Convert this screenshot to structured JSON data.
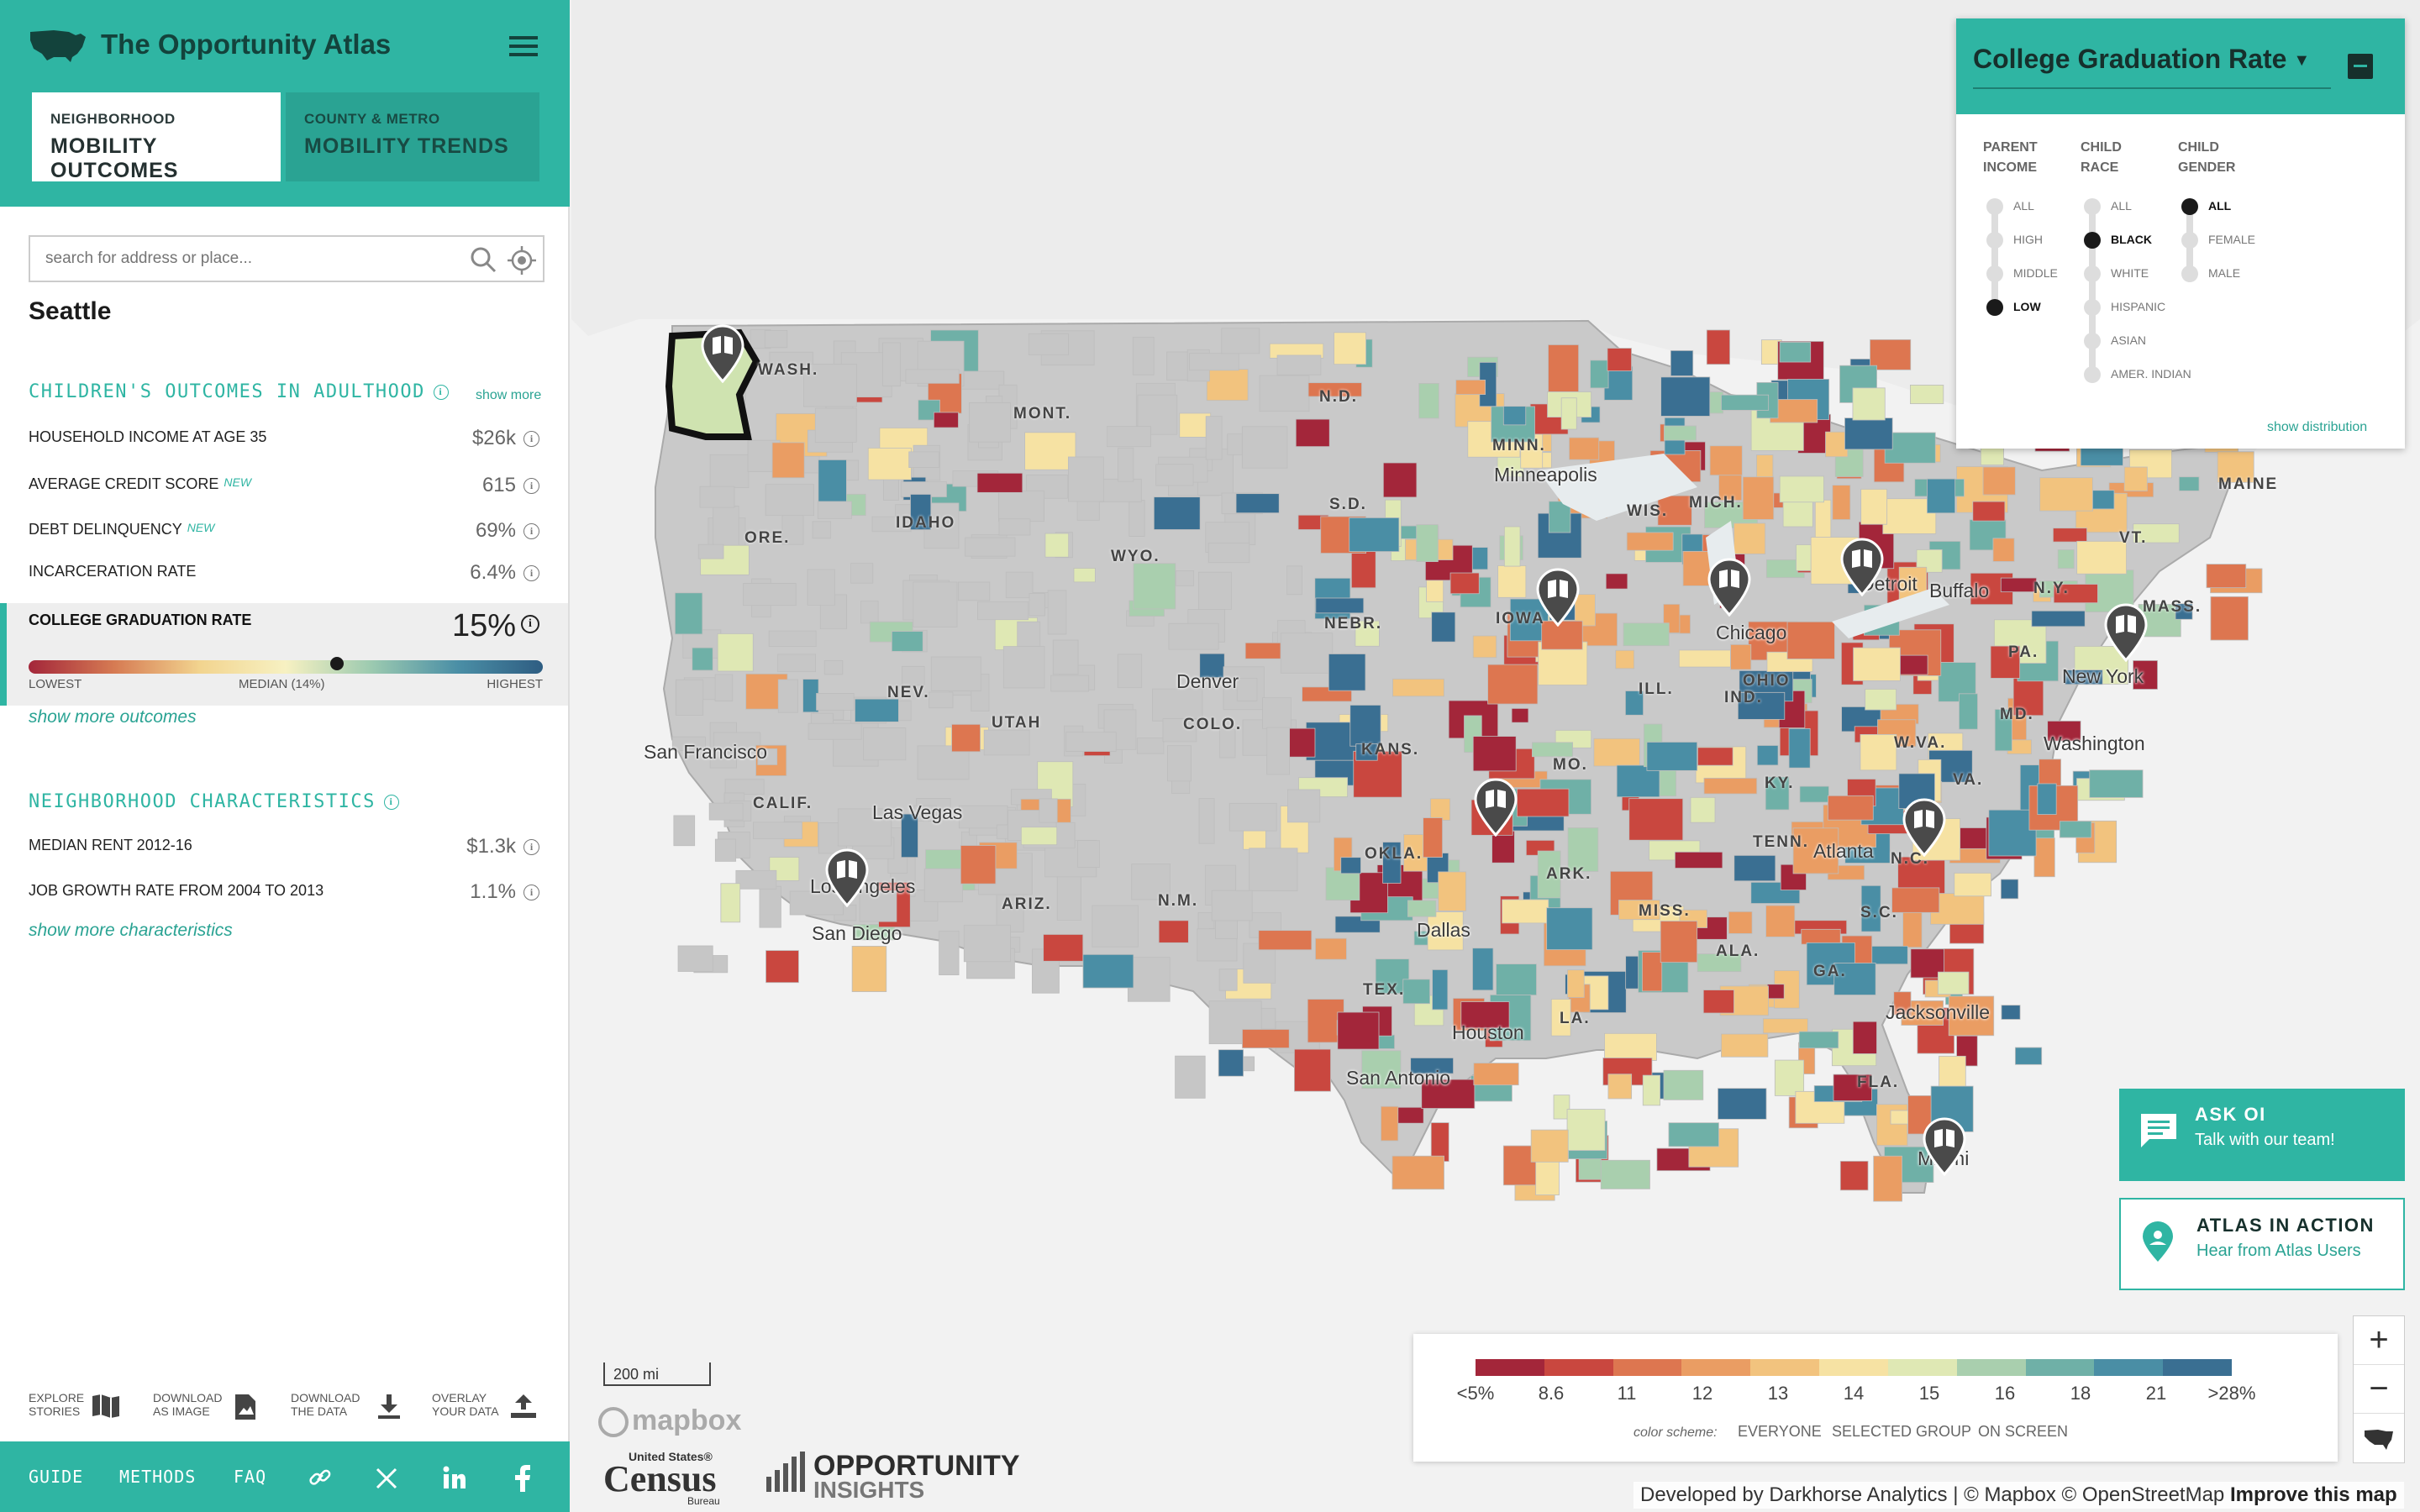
{
  "app": {
    "title": "The Opportunity Atlas"
  },
  "tabs": [
    {
      "small": "NEIGHBORHOOD",
      "big": "MOBILITY OUTCOMES"
    },
    {
      "small": "COUNTY & METRO",
      "big": "MOBILITY TRENDS"
    }
  ],
  "search": {
    "placeholder": "search for address or place..."
  },
  "place": "Seattle",
  "outcomes": {
    "title": "CHILDREN'S OUTCOMES IN ADULTHOOD",
    "show_more": "show more",
    "rows": [
      {
        "label": "HOUSEHOLD INCOME AT AGE 35",
        "value": "$26k",
        "new": ""
      },
      {
        "label": "AVERAGE CREDIT SCORE",
        "value": "615",
        "new": "NEW"
      },
      {
        "label": "DEBT DELINQUENCY",
        "value": "69%",
        "new": "NEW"
      },
      {
        "label": "INCARCERATION RATE",
        "value": "6.4%",
        "new": ""
      }
    ],
    "highlight": {
      "label": "COLLEGE GRADUATION RATE",
      "value": "15%",
      "low": "LOWEST",
      "median": "MEDIAN (14%)",
      "high": "HIGHEST",
      "position": 0.6
    },
    "show_more_outcomes": "show more outcomes"
  },
  "characteristics": {
    "title": "NEIGHBORHOOD CHARACTERISTICS",
    "rows": [
      {
        "label": "MEDIAN RENT 2012-16",
        "value": "$1.3k"
      },
      {
        "label": "JOB GROWTH RATE FROM 2004 TO 2013",
        "value": "1.1%"
      }
    ],
    "show_more": "show more characteristics"
  },
  "tools": [
    {
      "l1": "EXPLORE",
      "l2": "STORIES",
      "icon": "book-map-icon"
    },
    {
      "l1": "DOWNLOAD",
      "l2": "AS IMAGE",
      "icon": "image-download-icon"
    },
    {
      "l1": "DOWNLOAD",
      "l2": "THE DATA",
      "icon": "download-icon"
    },
    {
      "l1": "OVERLAY",
      "l2": "YOUR DATA",
      "icon": "upload-icon"
    }
  ],
  "footer": {
    "guide": "GUIDE",
    "methods": "METHODS",
    "faq": "FAQ"
  },
  "panel": {
    "title": "College Graduation Rate",
    "parent_income": {
      "h1": "PARENT",
      "h2": "INCOME",
      "options": [
        "ALL",
        "HIGH",
        "MIDDLE",
        "LOW"
      ],
      "selected": "LOW"
    },
    "child_race": {
      "h1": "CHILD",
      "h2": "RACE",
      "options": [
        "ALL",
        "BLACK",
        "WHITE",
        "HISPANIC",
        "ASIAN",
        "AMER. INDIAN"
      ],
      "selected": "BLACK"
    },
    "child_gender": {
      "h1": "CHILD",
      "h2": "GENDER",
      "options": [
        "ALL",
        "FEMALE",
        "MALE"
      ],
      "selected": "ALL"
    },
    "show_distribution": "show distribution"
  },
  "legend": {
    "labels": [
      "<5%",
      "8.6",
      "11",
      "12",
      "13",
      "14",
      "15",
      "16",
      "18",
      "21",
      ">28%"
    ],
    "colors": [
      "#a3263a",
      "#c9473f",
      "#dd7650",
      "#ea9d63",
      "#f2c37e",
      "#f6e2a3",
      "#dfe8b4",
      "#a9cfae",
      "#6fb0a7",
      "#4a8ea5",
      "#3a6f92"
    ],
    "color_scheme_label": "color scheme:",
    "schemes": [
      "EVERYONE",
      "SELECTED GROUP",
      "ON SCREEN"
    ],
    "selected_scheme": "SELECTED GROUP"
  },
  "cta": [
    {
      "t1": "ASK OI",
      "t2": "Talk with our team!"
    },
    {
      "t1": "ATLAS IN ACTION",
      "t2": "Hear from Atlas Users"
    }
  ],
  "zoom": {
    "in": "+",
    "out": "−"
  },
  "scale": "200 mi",
  "attribution": {
    "text": "Developed by Darkhorse Analytics | © Mapbox © OpenStreetMap",
    "improve": "Improve this map"
  },
  "logos": {
    "mapbox": "mapbox",
    "census_top": "United States®",
    "census": "Census",
    "census_sub": "Bureau",
    "oi1": "OPPORTUNITY",
    "oi2": "INSIGHTS"
  },
  "map_labels": {
    "cities": [
      "San Francisco",
      "Las Vegas",
      "Los Angeles",
      "San Diego",
      "Denver",
      "Dallas",
      "Houston",
      "San Antonio",
      "Minneapolis",
      "Chicago",
      "Detroit",
      "Buffalo",
      "New York",
      "Washington",
      "Atlanta",
      "Jacksonville",
      "Miami"
    ],
    "states": [
      "WASH.",
      "ORE.",
      "IDAHO",
      "MONT.",
      "N.D.",
      "S.D.",
      "MINN.",
      "WYO.",
      "NEBR.",
      "NEV.",
      "UTAH",
      "COLO.",
      "KANS.",
      "CALIF.",
      "ARIZ.",
      "N.M.",
      "OKLA.",
      "TEX.",
      "WIS.",
      "MICH.",
      "IOWA",
      "ILL.",
      "IND.",
      "OHIO",
      "MO.",
      "KY.",
      "TENN.",
      "ARK.",
      "MISS.",
      "ALA.",
      "GA.",
      "LA.",
      "S.C.",
      "N.C.",
      "VA.",
      "W.VA.",
      "PA.",
      "N.Y.",
      "MAINE",
      "VT.",
      "MASS.",
      "MD.",
      "FLA."
    ]
  }
}
